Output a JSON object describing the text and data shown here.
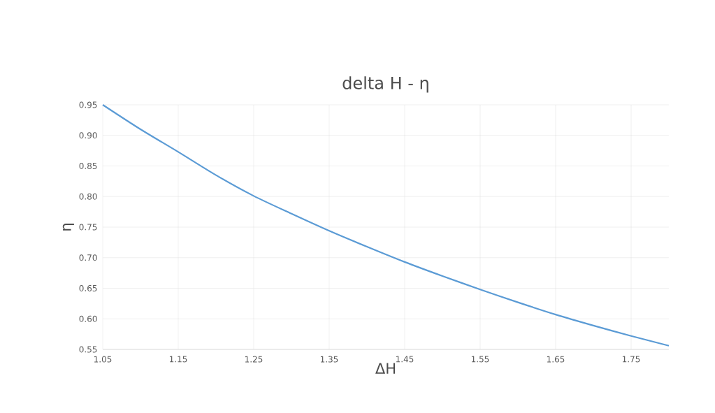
{
  "chart_data": {
    "type": "line",
    "title": "delta H -  η",
    "xlabel": "ΔH",
    "ylabel": "η",
    "x": [
      1.05,
      1.1,
      1.15,
      1.2,
      1.25,
      1.3,
      1.35,
      1.4,
      1.45,
      1.5,
      1.55,
      1.6,
      1.65,
      1.7,
      1.75,
      1.8
    ],
    "series": [
      {
        "color": "#5b9bd5",
        "values": [
          0.95,
          0.91,
          0.873,
          0.835,
          0.801,
          0.772,
          0.744,
          0.718,
          0.693,
          0.67,
          0.648,
          0.627,
          0.607,
          0.589,
          0.572,
          0.556
        ]
      }
    ],
    "xlim": [
      1.05,
      1.8
    ],
    "ylim": [
      0.55,
      0.95
    ],
    "xticks": [
      1.05,
      1.15,
      1.25,
      1.35,
      1.45,
      1.55,
      1.65,
      1.75
    ],
    "yticks": [
      {
        "value": 0.55,
        "label": "0.55"
      },
      {
        "value": 0.6,
        "label": "0.60"
      },
      {
        "value": 0.65,
        "label": "0.65"
      },
      {
        "value": 0.7,
        "label": "0.70"
      },
      {
        "value": 0.75,
        "label": "0.75"
      },
      {
        "value": 0.8,
        "label": "0.80"
      },
      {
        "value": 0.85,
        "label": "0.85"
      },
      {
        "value": 0.9,
        "label": "0.90"
      },
      {
        "value": 0.95,
        "label": "0.95"
      }
    ],
    "grid": true,
    "marker": "none",
    "line_style": "solid"
  }
}
